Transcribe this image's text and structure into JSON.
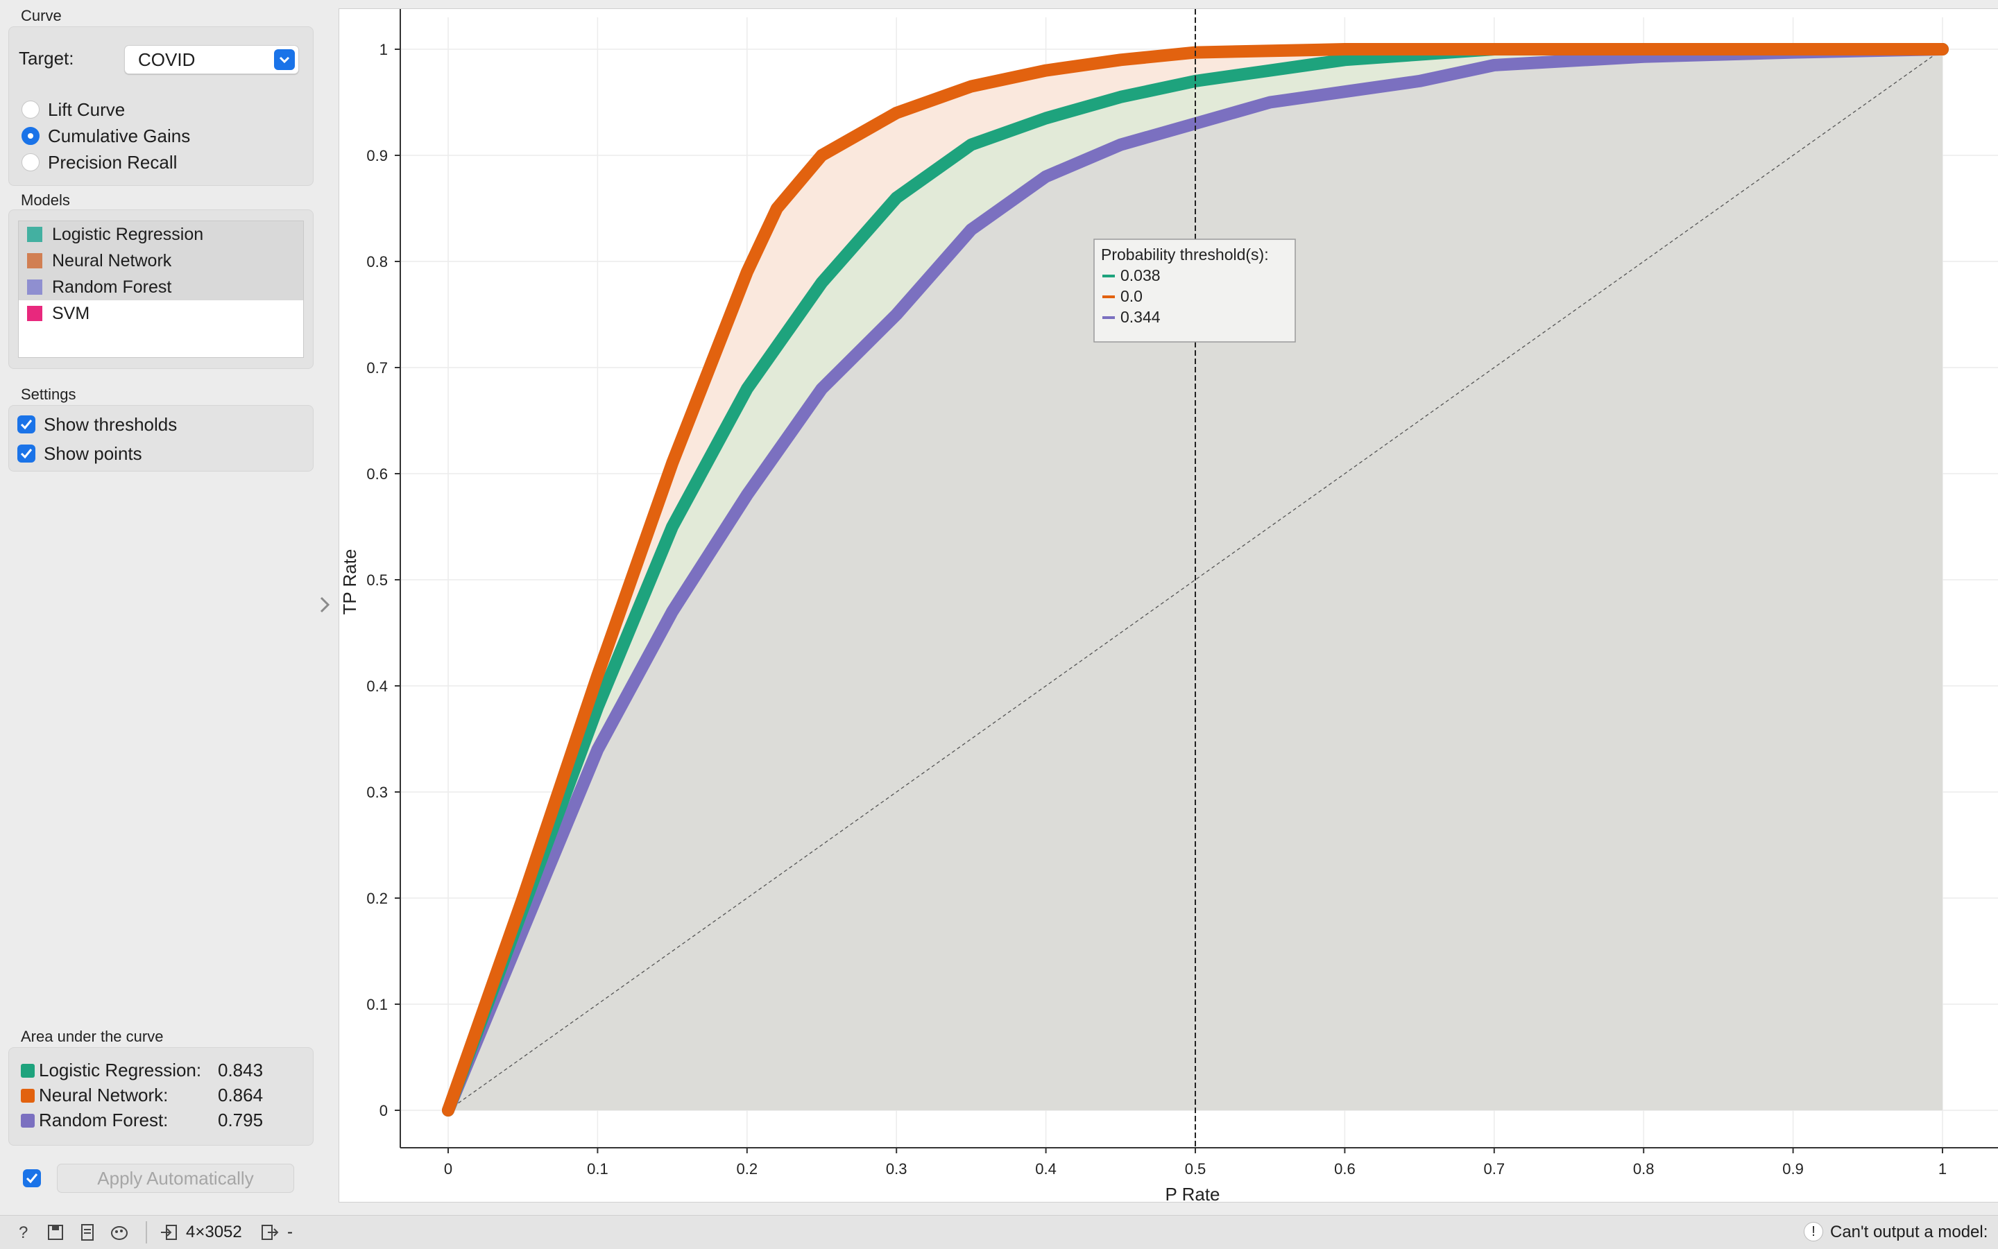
{
  "sidebar": {
    "curve_section": "Curve",
    "target_label": "Target:",
    "target_value": "COVID",
    "curve_options": [
      "Lift Curve",
      "Cumulative Gains",
      "Precision Recall"
    ],
    "selected_curve": "Cumulative Gains",
    "models_section": "Models",
    "models": [
      {
        "name": "Logistic Regression",
        "color": "#43b0a1",
        "selected": true
      },
      {
        "name": "Neural Network",
        "color": "#d17f53",
        "selected": true
      },
      {
        "name": "Random Forest",
        "color": "#8f8fd0",
        "selected": true
      },
      {
        "name": "SVM",
        "color": "#e8287d",
        "selected": false
      }
    ],
    "settings_section": "Settings",
    "settings": [
      {
        "label": "Show thresholds",
        "checked": true
      },
      {
        "label": "Show points",
        "checked": true
      }
    ],
    "auc_section": "Area under the curve",
    "auc": [
      {
        "name": "Logistic Regression:",
        "value": "0.843",
        "color": "#1ea37d"
      },
      {
        "name": "Neural Network:",
        "value": "0.864",
        "color": "#e2620f"
      },
      {
        "name": "Random Forest:",
        "value": "0.795",
        "color": "#7b70c0"
      }
    ],
    "apply_label": "Apply Automatically",
    "apply_checked": true
  },
  "statusbar": {
    "data_shape": "4×3052",
    "output_text": "-",
    "warning": "Can't output a model:"
  },
  "chart_data": {
    "type": "line",
    "xlabel": "P Rate",
    "ylabel": "TP Rate",
    "xlim": [
      0,
      1
    ],
    "ylim": [
      0,
      1
    ],
    "xticks": [
      "0",
      "0.1",
      "0.2",
      "0.3",
      "0.4",
      "0.5",
      "0.6",
      "0.7",
      "0.8",
      "0.9",
      "1"
    ],
    "yticks": [
      "0",
      "0.1",
      "0.2",
      "0.3",
      "0.4",
      "0.5",
      "0.6",
      "0.7",
      "0.8",
      "0.9",
      "1"
    ],
    "grid": true,
    "cursor_x": 0.5,
    "tooltip": {
      "title": "Probability threshold(s):",
      "values": [
        {
          "value": "0.038",
          "color": "#1ea37d"
        },
        {
          "value": "0.0",
          "color": "#e2620f"
        },
        {
          "value": "0.344",
          "color": "#7b70c0"
        }
      ]
    },
    "series": [
      {
        "color": "#e2620f",
        "fill": "#fae8dd",
        "x": [
          0,
          0.05,
          0.1,
          0.15,
          0.2,
          0.22,
          0.25,
          0.3,
          0.35,
          0.4,
          0.45,
          0.5,
          0.6,
          0.7,
          0.8,
          1
        ],
        "y": [
          0,
          0.2,
          0.41,
          0.61,
          0.79,
          0.85,
          0.9,
          0.94,
          0.965,
          0.98,
          0.99,
          0.997,
          1.0,
          1.0,
          1.0,
          1.0
        ]
      },
      {
        "color": "#1ea37d",
        "fill": "#e2ead8",
        "x": [
          0,
          0.05,
          0.1,
          0.15,
          0.2,
          0.25,
          0.3,
          0.35,
          0.4,
          0.45,
          0.5,
          0.55,
          0.6,
          0.7,
          0.8,
          1
        ],
        "y": [
          0,
          0.19,
          0.38,
          0.55,
          0.68,
          0.78,
          0.86,
          0.91,
          0.935,
          0.955,
          0.97,
          0.98,
          0.99,
          1.0,
          1.0,
          1.0
        ]
      },
      {
        "color": "#7b70c0",
        "fill": "#dcdcd8",
        "x": [
          0,
          0.05,
          0.1,
          0.15,
          0.2,
          0.25,
          0.3,
          0.35,
          0.4,
          0.45,
          0.5,
          0.55,
          0.6,
          0.65,
          0.7,
          0.8,
          0.9,
          1
        ],
        "y": [
          0,
          0.17,
          0.34,
          0.47,
          0.58,
          0.68,
          0.75,
          0.83,
          0.88,
          0.91,
          0.93,
          0.95,
          0.96,
          0.97,
          0.985,
          0.993,
          0.997,
          1.0
        ]
      }
    ]
  }
}
